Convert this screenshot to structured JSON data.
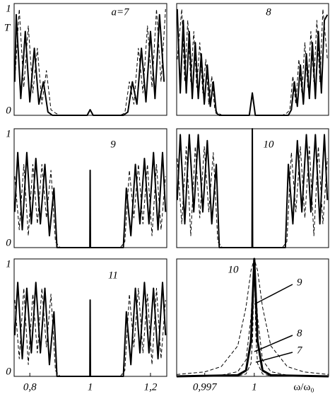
{
  "chart_data": [
    {
      "type": "line",
      "label": "a=7",
      "ylabel": "T",
      "xlim": [
        0.748,
        1.254
      ],
      "ylim": [
        0,
        1
      ],
      "yticks": [
        0,
        1
      ],
      "series": [
        {
          "color": "#000",
          "dash": false,
          "x": [
            0.75,
            0.755,
            0.77,
            0.785,
            0.8,
            0.815,
            0.83,
            0.845,
            0.86,
            0.875,
            0.89,
            0.99,
            1.0,
            1.01,
            1.11,
            1.125,
            1.14,
            1.155,
            1.17,
            1.185,
            1.2,
            1.215,
            1.23,
            1.245
          ],
          "values": [
            0.3,
            0.9,
            0.15,
            0.75,
            0.12,
            0.6,
            0.1,
            0.3,
            0.03,
            0,
            0,
            0,
            0.05,
            0,
            0,
            0.03,
            0.3,
            0.1,
            0.6,
            0.12,
            0.75,
            0.15,
            0.9,
            0.3
          ]
        },
        {
          "color": "#000",
          "dash": true,
          "x": [
            0.75,
            0.765,
            0.78,
            0.795,
            0.81,
            0.825,
            0.84,
            0.855,
            0.87,
            0.885,
            0.9,
            1.1,
            1.115,
            1.13,
            1.145,
            1.16,
            1.175,
            1.19,
            1.205,
            1.22,
            1.235,
            1.25
          ],
          "values": [
            0.3,
            0.95,
            0.25,
            0.8,
            0.2,
            0.6,
            0.1,
            0.4,
            0.05,
            0.02,
            0,
            0,
            0.02,
            0.3,
            0.1,
            0.6,
            0.2,
            0.8,
            0.25,
            0.95,
            0.3,
            0.95
          ]
        }
      ]
    },
    {
      "type": "line",
      "label": "8",
      "xlim": [
        0.748,
        1.254
      ],
      "ylim": [
        0,
        1
      ],
      "series": [
        {
          "color": "#000",
          "dash": false,
          "x": [
            0.75,
            0.76,
            0.77,
            0.78,
            0.79,
            0.8,
            0.81,
            0.82,
            0.83,
            0.84,
            0.85,
            0.86,
            0.87,
            0.88,
            0.89,
            0.99,
            1.0,
            1.01,
            1.12,
            1.13,
            1.14,
            1.15,
            1.16,
            1.17,
            1.18,
            1.19,
            1.2,
            1.21,
            1.22,
            1.23,
            1.24,
            1.25
          ],
          "values": [
            0.95,
            0.2,
            0.85,
            0.2,
            0.75,
            0.15,
            0.65,
            0.15,
            0.55,
            0.1,
            0.45,
            0.08,
            0.3,
            0.02,
            0,
            0,
            0.2,
            0,
            0,
            0.05,
            0.3,
            0.08,
            0.45,
            0.1,
            0.55,
            0.15,
            0.65,
            0.15,
            0.75,
            0.2,
            0.85,
            0.9
          ]
        },
        {
          "color": "#000",
          "dash": true,
          "x": [
            0.75,
            0.765,
            0.775,
            0.785,
            0.795,
            0.805,
            0.815,
            0.825,
            0.835,
            0.845,
            0.855,
            0.865,
            0.875,
            0.885,
            0.9,
            1.1,
            1.115,
            1.125,
            1.135,
            1.145,
            1.155,
            1.165,
            1.175,
            1.185,
            1.195,
            1.205,
            1.215,
            1.225,
            1.235,
            1.25
          ],
          "values": [
            0.5,
            0.95,
            0.3,
            0.85,
            0.3,
            0.75,
            0.25,
            0.65,
            0.2,
            0.5,
            0.1,
            0.35,
            0.05,
            0.02,
            0,
            0,
            0.02,
            0.05,
            0.35,
            0.1,
            0.5,
            0.2,
            0.65,
            0.25,
            0.75,
            0.3,
            0.85,
            0.3,
            0.95,
            0.5
          ]
        }
      ]
    },
    {
      "type": "line",
      "label": "9",
      "xlim": [
        0.748,
        1.254
      ],
      "ylim": [
        0,
        1
      ],
      "yticks": [
        0,
        1
      ],
      "series": [
        {
          "color": "#000",
          "dash": false,
          "x": [
            0.75,
            0.76,
            0.775,
            0.79,
            0.805,
            0.82,
            0.835,
            0.85,
            0.865,
            0.88,
            0.89,
            0.999,
            1.0,
            1.001,
            1.11,
            1.12,
            1.135,
            1.15,
            1.165,
            1.18,
            1.195,
            1.21,
            1.225,
            1.24,
            1.25
          ],
          "values": [
            0.3,
            0.8,
            0.15,
            0.8,
            0.2,
            0.75,
            0.2,
            0.7,
            0.1,
            0.5,
            0,
            0,
            0.65,
            0,
            0,
            0.5,
            0.1,
            0.7,
            0.2,
            0.75,
            0.2,
            0.8,
            0.15,
            0.8,
            0.3
          ]
        },
        {
          "color": "#000",
          "dash": true,
          "x": [
            0.75,
            0.765,
            0.78,
            0.795,
            0.81,
            0.825,
            0.84,
            0.855,
            0.87,
            0.885,
            0.9,
            1.1,
            1.115,
            1.13,
            1.145,
            1.16,
            1.175,
            1.19,
            1.205,
            1.22,
            1.235,
            1.25
          ],
          "values": [
            0.6,
            0.15,
            0.7,
            0.1,
            0.7,
            0.2,
            0.7,
            0.25,
            0.65,
            0.05,
            0,
            0,
            0.05,
            0.65,
            0.25,
            0.7,
            0.2,
            0.7,
            0.1,
            0.7,
            0.15,
            0.6
          ]
        }
      ]
    },
    {
      "type": "line",
      "label": "10",
      "xlim": [
        0.748,
        1.254
      ],
      "ylim": [
        0,
        1
      ],
      "series": [
        {
          "color": "#000",
          "dash": false,
          "x": [
            0.75,
            0.76,
            0.775,
            0.79,
            0.805,
            0.82,
            0.835,
            0.85,
            0.865,
            0.88,
            0.89,
            0.999,
            1.0,
            1.001,
            1.11,
            1.12,
            1.135,
            1.15,
            1.165,
            1.18,
            1.195,
            1.21,
            1.225,
            1.24,
            1.25
          ],
          "values": [
            0.4,
            0.95,
            0.2,
            0.95,
            0.3,
            0.95,
            0.3,
            0.9,
            0.2,
            0.7,
            0,
            0,
            1,
            0,
            0,
            0.7,
            0.2,
            0.9,
            0.3,
            0.95,
            0.3,
            0.95,
            0.2,
            0.95,
            0.4
          ]
        },
        {
          "color": "#000",
          "dash": true,
          "x": [
            0.75,
            0.765,
            0.78,
            0.795,
            0.81,
            0.825,
            0.84,
            0.855,
            0.87,
            0.885,
            0.9,
            1.1,
            1.115,
            1.13,
            1.145,
            1.16,
            1.175,
            1.19,
            1.205,
            1.22,
            1.235,
            1.25
          ],
          "values": [
            0.75,
            0.2,
            0.85,
            0.1,
            0.85,
            0.25,
            0.85,
            0.3,
            0.8,
            0.05,
            0,
            0,
            0.05,
            0.8,
            0.3,
            0.85,
            0.25,
            0.85,
            0.1,
            0.85,
            0.2,
            0.75
          ]
        }
      ]
    },
    {
      "type": "line",
      "label": "11",
      "xlim": [
        0.748,
        1.254
      ],
      "ylim": [
        0,
        1
      ],
      "yticks": [
        0,
        1
      ],
      "xticks": [
        {
          "value": 0.8,
          "label": "0,8"
        },
        1,
        {
          "value": 1.2,
          "label": "1,2"
        }
      ],
      "series": [
        {
          "color": "#000",
          "dash": false,
          "x": [
            0.75,
            0.76,
            0.775,
            0.79,
            0.805,
            0.82,
            0.835,
            0.85,
            0.865,
            0.88,
            0.89,
            0.999,
            1.0,
            1.001,
            1.11,
            1.12,
            1.135,
            1.15,
            1.165,
            1.18,
            1.195,
            1.21,
            1.225,
            1.24,
            1.25
          ],
          "values": [
            0.35,
            0.8,
            0.15,
            0.75,
            0.2,
            0.8,
            0.2,
            0.75,
            0.1,
            0.55,
            0,
            0,
            0.65,
            0,
            0,
            0.55,
            0.1,
            0.75,
            0.2,
            0.8,
            0.2,
            0.75,
            0.15,
            0.8,
            0.35
          ]
        },
        {
          "color": "#000",
          "dash": true,
          "x": [
            0.75,
            0.765,
            0.78,
            0.795,
            0.81,
            0.825,
            0.84,
            0.855,
            0.87,
            0.885,
            0.9,
            1.1,
            1.115,
            1.13,
            1.145,
            1.16,
            1.175,
            1.19,
            1.205,
            1.22,
            1.235,
            1.25
          ],
          "values": [
            0.65,
            0.15,
            0.75,
            0.1,
            0.7,
            0.2,
            0.75,
            0.25,
            0.7,
            0.05,
            0,
            0,
            0.05,
            0.7,
            0.25,
            0.75,
            0.2,
            0.7,
            0.1,
            0.75,
            0.15,
            0.65
          ]
        }
      ]
    },
    {
      "type": "line",
      "label": "10",
      "xlabel": "ω/ω₀",
      "xlim": [
        0.9953,
        1.0045
      ],
      "ylim": [
        0,
        1
      ],
      "xticks": [
        {
          "value": 0.997,
          "label": "0,997"
        },
        1
      ],
      "annotations": [
        "9",
        "8",
        "7"
      ],
      "series": [
        {
          "color": "#000",
          "dash": true,
          "width": 1,
          "x": [
            0.9953,
            0.997,
            0.998,
            0.999,
            0.9995,
            0.9998,
            1,
            1.0002,
            1.0005,
            1.001,
            1.002,
            1.003,
            1.0045
          ],
          "values": [
            0.016,
            0.038,
            0.083,
            0.26,
            0.59,
            0.9,
            1,
            0.9,
            0.59,
            0.26,
            0.083,
            0.038,
            0.016
          ]
        },
        {
          "color": "#000",
          "dash": true,
          "width": 1,
          "x": [
            0.9953,
            0.997,
            0.998,
            0.999,
            0.9995,
            0.9998,
            1,
            1.0002,
            1.0005,
            1.001,
            1.002,
            1.003,
            1.0045
          ],
          "values": [
            0.002,
            0.004,
            0.01,
            0.04,
            0.14,
            0.5,
            1,
            0.5,
            0.14,
            0.04,
            0.01,
            0.004,
            0.002
          ]
        },
        {
          "color": "#000",
          "dash": true,
          "width": 1,
          "x": [
            0.9953,
            0.999,
            0.9995,
            0.9998,
            0.9999,
            1,
            1.0001,
            1.0002,
            1.0005,
            1.001,
            1.0045
          ],
          "values": [
            0,
            0.005,
            0.02,
            0.11,
            0.33,
            1,
            0.33,
            0.11,
            0.02,
            0.005,
            0
          ]
        },
        {
          "color": "#000",
          "dash": false,
          "width": 3,
          "x": [
            0.9953,
            0.999,
            0.9995,
            0.9998,
            1,
            1.0002,
            1.0005,
            1.001,
            1.0045
          ],
          "values": [
            0,
            0.01,
            0.05,
            0.3,
            1,
            0.3,
            0.05,
            0.01,
            0
          ]
        }
      ]
    }
  ]
}
